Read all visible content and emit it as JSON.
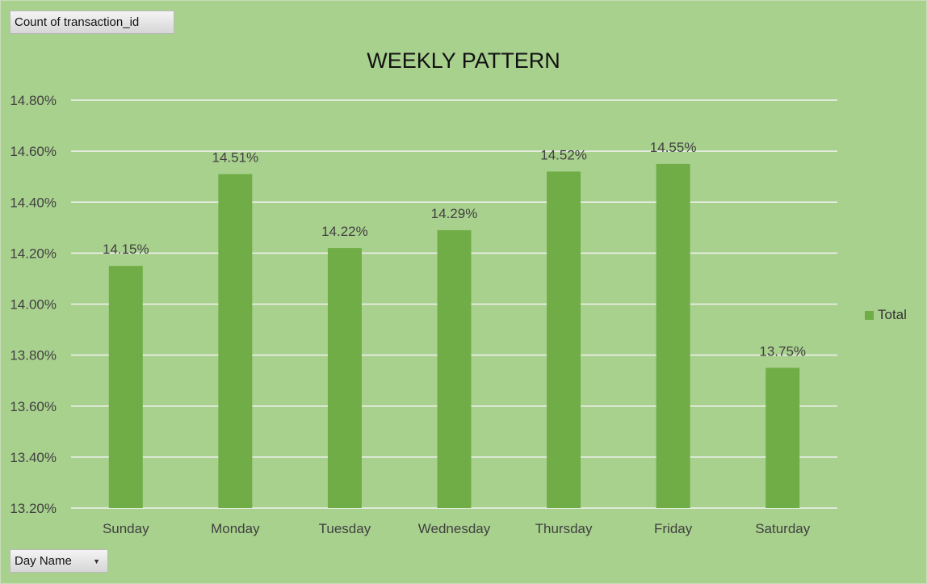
{
  "pivot": {
    "value_field": "Count of transaction_id",
    "axis_field": "Day Name"
  },
  "colors": {
    "background": "#a9d18e",
    "bar": "#70ad47",
    "gridline": "#f2f2f2",
    "text": "#404040"
  },
  "chart_data": {
    "type": "bar",
    "title": "WEEKLY PATTERN",
    "xlabel": "",
    "ylabel": "",
    "categories": [
      "Sunday",
      "Monday",
      "Tuesday",
      "Wednesday",
      "Thursday",
      "Friday",
      "Saturday"
    ],
    "series": [
      {
        "name": "Total",
        "values": [
          14.15,
          14.51,
          14.22,
          14.29,
          14.52,
          14.55,
          13.75
        ]
      }
    ],
    "data_labels": [
      "14.15%",
      "14.51%",
      "14.22%",
      "14.29%",
      "14.52%",
      "14.55%",
      "13.75%"
    ],
    "ylim": [
      13.2,
      14.8
    ],
    "yticks": [
      "13.20%",
      "13.40%",
      "13.60%",
      "13.80%",
      "14.00%",
      "14.20%",
      "14.40%",
      "14.60%",
      "14.80%"
    ],
    "grid": true,
    "legend_position": "right"
  }
}
